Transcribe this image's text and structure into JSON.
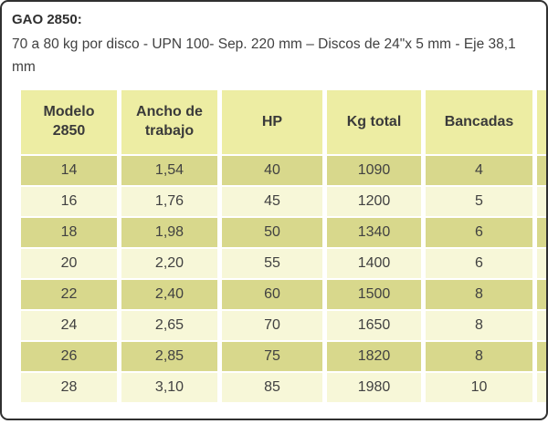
{
  "intro": {
    "title": "GAO 2850:",
    "description": "70 a 80 kg por disco - UPN 100- Sep. 220 mm – Discos de 24\"x 5 mm - Eje 38,1 mm"
  },
  "table": {
    "columns": [
      "Modelo 2850",
      "Ancho de trabajo",
      "HP",
      "Kg total",
      "Bancadas"
    ],
    "rows": [
      [
        "14",
        "1,54",
        "40",
        "1090",
        "4"
      ],
      [
        "16",
        "1,76",
        "45",
        "1200",
        "5"
      ],
      [
        "18",
        "1,98",
        "50",
        "1340",
        "6"
      ],
      [
        "20",
        "2,20",
        "55",
        "1400",
        "6"
      ],
      [
        "22",
        "2,40",
        "60",
        "1500",
        "8"
      ],
      [
        "24",
        "2,65",
        "70",
        "1650",
        "8"
      ],
      [
        "26",
        "2,85",
        "75",
        "1820",
        "8"
      ],
      [
        "28",
        "3,10",
        "85",
        "1980",
        "10"
      ]
    ]
  },
  "colors": {
    "header_bg": "#ededa3",
    "row_dark": "#d8d88c",
    "row_light": "#f7f7d8",
    "text": "#414141",
    "title": "#2f2f2f",
    "frame_border": "#303030"
  }
}
